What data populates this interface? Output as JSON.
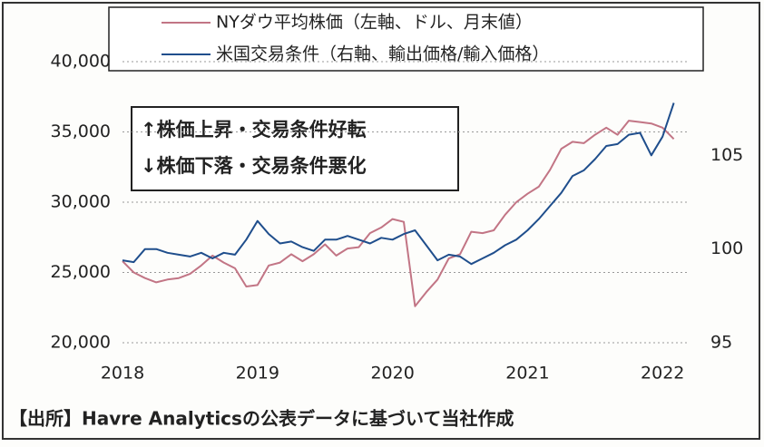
{
  "chart_data": {
    "type": "line",
    "legend_position": "top",
    "grid": true,
    "x": [
      2018,
      2018.0833,
      2018.1667,
      2018.25,
      2018.3333,
      2018.4167,
      2018.5,
      2018.5833,
      2018.6667,
      2018.75,
      2018.8333,
      2018.9167,
      2019,
      2019.0833,
      2019.1667,
      2019.25,
      2019.3333,
      2019.4167,
      2019.5,
      2019.5833,
      2019.6667,
      2019.75,
      2019.8333,
      2019.9167,
      2020,
      2020.0833,
      2020.1667,
      2020.25,
      2020.3333,
      2020.4167,
      2020.5,
      2020.5833,
      2020.6667,
      2020.75,
      2020.8333,
      2020.9167,
      2021,
      2021.0833,
      2021.1667,
      2021.25,
      2021.3333,
      2021.4167,
      2021.5,
      2021.5833,
      2021.6667,
      2021.75,
      2021.8333,
      2021.9167,
      2022,
      2022.0833
    ],
    "xlim": [
      2018,
      2022.2
    ],
    "xticks": [
      2018,
      2019,
      2020,
      2021,
      2022
    ],
    "ylim": [
      20000,
      40000
    ],
    "yticks": [
      {
        "value": 20000,
        "label": "20,000"
      },
      {
        "value": 25000,
        "label": "25,000"
      },
      {
        "value": 30000,
        "label": "30,000"
      },
      {
        "value": 35000,
        "label": "35,000"
      },
      {
        "value": 40000,
        "label": "40,000"
      }
    ],
    "y2lim": [
      95,
      110
    ],
    "y2ticks": [
      95,
      100,
      105
    ],
    "series": [
      {
        "name": "NYダウ平均株価（左軸、ドル、月末値）",
        "color": "#c27585",
        "values": [
          25800,
          25000,
          24600,
          24300,
          24500,
          24600,
          24900,
          25500,
          26200,
          25700,
          25300,
          24000,
          24100,
          25500,
          25700,
          26300,
          25800,
          26300,
          27000,
          26200,
          26700,
          26800,
          27800,
          28200,
          28800,
          28600,
          22600,
          23600,
          24500,
          26000,
          26300,
          27900,
          27800,
          28000,
          29100,
          30000,
          30600,
          31100,
          32300,
          33800,
          34300,
          34200,
          34800,
          35300,
          34800,
          35800,
          35700,
          35600,
          35300,
          34500
        ]
      },
      {
        "name": "米国交易条件（右軸、輸出価格/輸入価格）",
        "color": "#1f4e8c",
        "axis": "y2",
        "values": [
          99.4,
          99.3,
          100.0,
          100.0,
          99.8,
          99.7,
          99.6,
          99.8,
          99.5,
          99.8,
          99.7,
          100.5,
          101.5,
          100.8,
          100.3,
          100.4,
          100.1,
          99.9,
          100.5,
          100.5,
          100.7,
          100.5,
          100.3,
          100.6,
          100.5,
          100.8,
          101.0,
          100.2,
          99.4,
          99.7,
          99.6,
          99.2,
          99.5,
          99.8,
          100.2,
          100.5,
          101.0,
          101.6,
          102.3,
          103.0,
          103.9,
          104.2,
          104.8,
          105.5,
          105.6,
          106.1,
          106.2,
          105.0,
          106.0,
          107.8
        ]
      }
    ],
    "annotations": [
      "↑株価上昇・交易条件好転",
      "↓株価下落・交易条件悪化"
    ],
    "source": "【出所】Havre Analyticsの公表データに基づいて当社作成"
  }
}
